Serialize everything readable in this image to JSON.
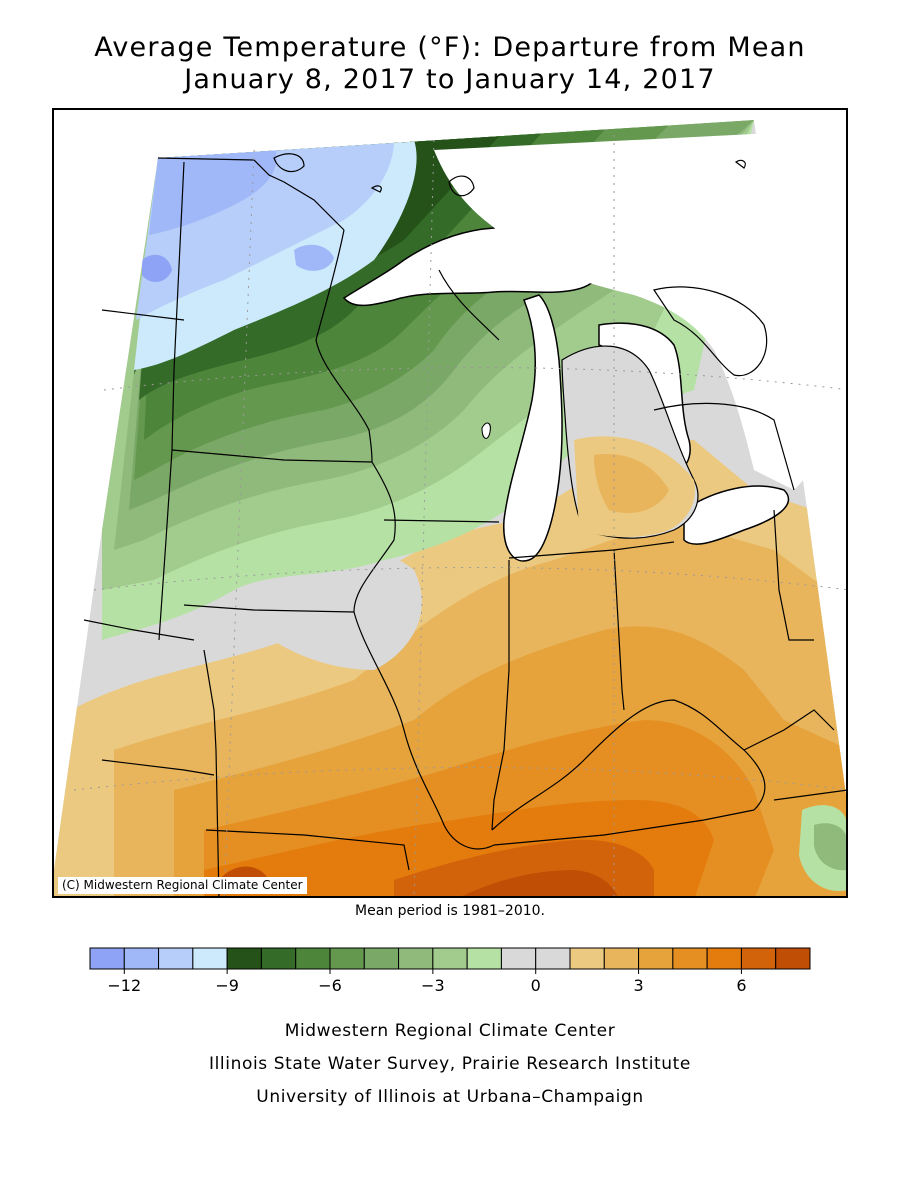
{
  "title": {
    "line1": "Average Temperature (°F): Departure from Mean",
    "line2": "January 8, 2017 to January 14, 2017"
  },
  "map": {
    "copyright": "(C) Midwestern Regional Climate Center",
    "mean_period": "Mean period is 1981–2010."
  },
  "legend": {
    "colors": [
      "#8ea3f5",
      "#a0b8f7",
      "#b7cefa",
      "#cdeafd",
      "#245219",
      "#356b29",
      "#4d853b",
      "#64984f",
      "#7aa866",
      "#8fba7c",
      "#a2cb8e",
      "#b5e2a4",
      "#d9d9d9",
      "#d9d9d9",
      "#ecc980",
      "#e8b55c",
      "#e6a33b",
      "#e58f23",
      "#e47b0d",
      "#d3630a",
      "#c04e05"
    ],
    "ticks": [
      {
        "label": "−12",
        "boundary": 1
      },
      {
        "label": "−9",
        "boundary": 4
      },
      {
        "label": "−6",
        "boundary": 7
      },
      {
        "label": "−3",
        "boundary": 10
      },
      {
        "label": "0",
        "boundary": 13
      },
      {
        "label": "3",
        "boundary": 16
      },
      {
        "label": "6",
        "boundary": 19
      }
    ]
  },
  "footer": {
    "line1": "Midwestern Regional Climate Center",
    "line2": "Illinois State Water Survey, Prairie Research Institute",
    "line3": "University of Illinois at Urbana–Champaign"
  }
}
